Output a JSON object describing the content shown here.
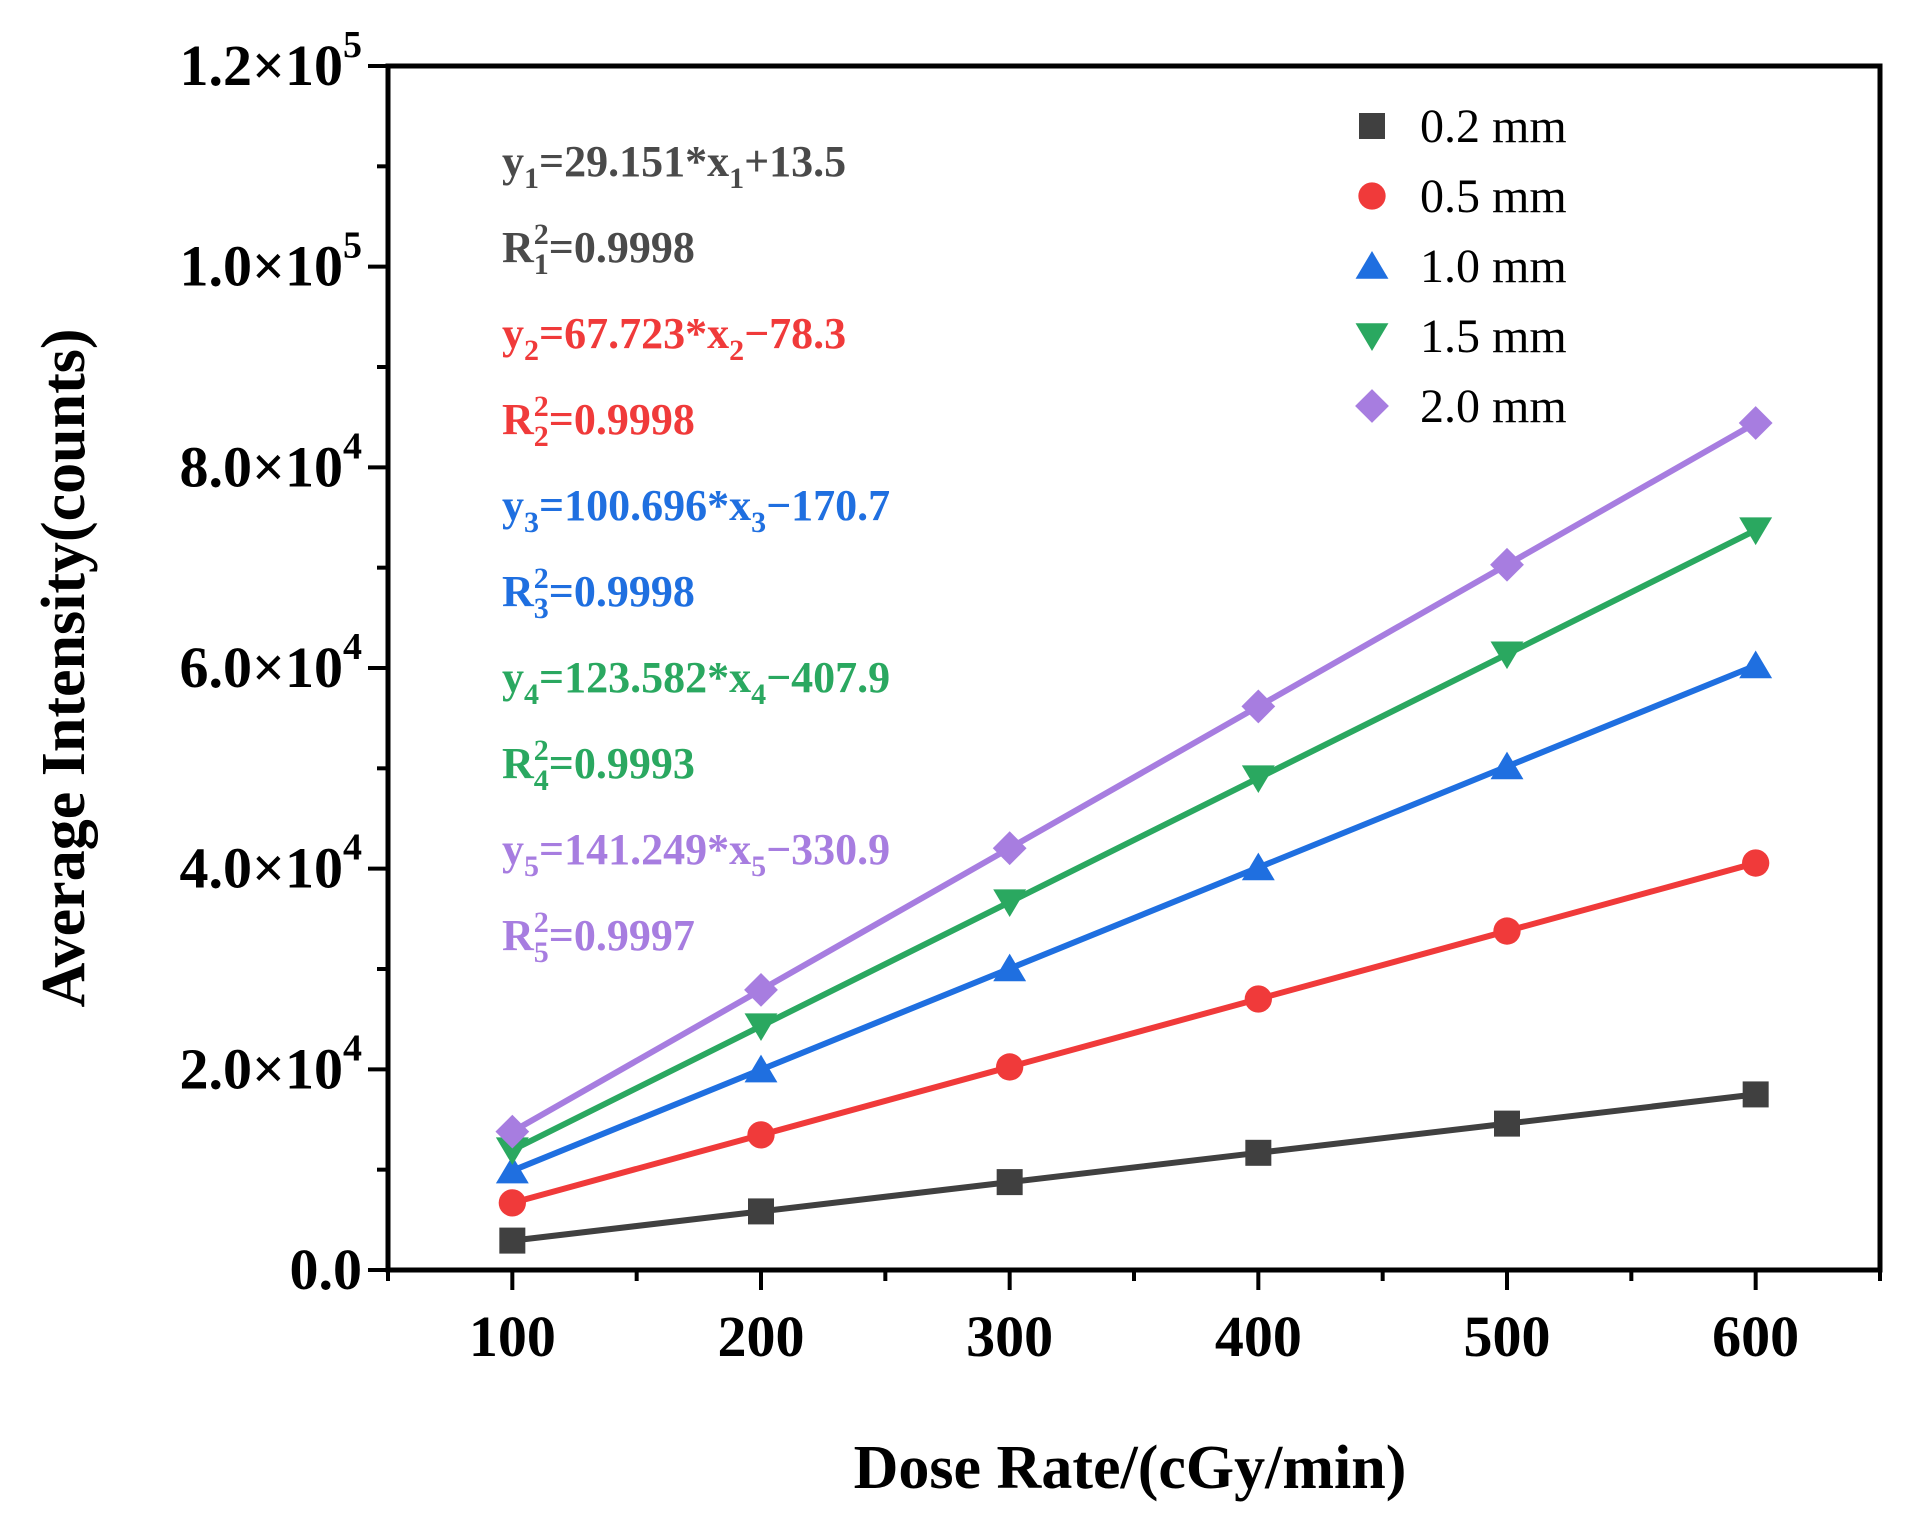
{
  "chart_data": {
    "type": "line",
    "title": "",
    "xlabel": "Dose Rate/(cGy/min)",
    "ylabel": "Average Intensity(counts)",
    "xlim": [
      50,
      650
    ],
    "ylim": [
      0,
      120000
    ],
    "x": [
      100,
      200,
      300,
      400,
      500,
      600
    ],
    "x_ticks": [
      "100",
      "200",
      "300",
      "400",
      "500",
      "600"
    ],
    "y_ticks": [
      {
        "mantissa": "0.0",
        "exp": ""
      },
      {
        "mantissa": "2.0×10",
        "exp": "4"
      },
      {
        "mantissa": "4.0×10",
        "exp": "4"
      },
      {
        "mantissa": "6.0×10",
        "exp": "4"
      },
      {
        "mantissa": "8.0×10",
        "exp": "4"
      },
      {
        "mantissa": "1.0×10",
        "exp": "5"
      },
      {
        "mantissa": "1.2×10",
        "exp": "5"
      }
    ],
    "grid": false,
    "legend_position": "top-right",
    "series": [
      {
        "name": "0.2 mm",
        "color": "#404040",
        "marker": "square",
        "values": [
          2930,
          5840,
          8760,
          11680,
          14590,
          17500
        ]
      },
      {
        "name": "0.5 mm",
        "color": "#f03a3a",
        "marker": "circle",
        "values": [
          6690,
          13470,
          20240,
          27010,
          33780,
          40560
        ]
      },
      {
        "name": "1.0 mm",
        "color": "#1f6fe0",
        "marker": "triangle-up",
        "values": [
          9900,
          19970,
          30040,
          40110,
          50180,
          60250
        ]
      },
      {
        "name": "1.5 mm",
        "color": "#2aa860",
        "marker": "triangle-down",
        "values": [
          11950,
          24310,
          36670,
          49030,
          61380,
          73740
        ]
      },
      {
        "name": "2.0 mm",
        "color": "#a77de0",
        "marker": "diamond",
        "values": [
          13790,
          27920,
          42040,
          56170,
          70290,
          84420
        ]
      }
    ],
    "annotations": [
      {
        "color": "#4a4a4a",
        "equation": {
          "parts": [
            [
              "t",
              "y"
            ],
            [
              "sub",
              "1"
            ],
            [
              "t",
              "=29.151*x"
            ],
            [
              "sub",
              "1"
            ],
            [
              "t",
              "+13.5"
            ]
          ]
        },
        "r2": {
          "parts": [
            [
              "t",
              "R"
            ],
            [
              "supsub",
              "2",
              "1"
            ],
            [
              "t",
              "=0.9998"
            ]
          ]
        }
      },
      {
        "color": "#f03a3a",
        "equation": {
          "parts": [
            [
              "t",
              "y"
            ],
            [
              "sub",
              "2"
            ],
            [
              "t",
              "=67.723*x"
            ],
            [
              "sub",
              "2"
            ],
            [
              "t",
              "−78.3"
            ]
          ]
        },
        "r2": {
          "parts": [
            [
              "t",
              "R"
            ],
            [
              "supsub",
              "2",
              "2"
            ],
            [
              "t",
              "=0.9998"
            ]
          ]
        }
      },
      {
        "color": "#1f6fe0",
        "equation": {
          "parts": [
            [
              "t",
              "y"
            ],
            [
              "sub",
              "3"
            ],
            [
              "t",
              "=100.696*x"
            ],
            [
              "sub",
              "3"
            ],
            [
              "t",
              "−170.7"
            ]
          ]
        },
        "r2": {
          "parts": [
            [
              "t",
              "R"
            ],
            [
              "supsub",
              "2",
              "3"
            ],
            [
              "t",
              "=0.9998"
            ]
          ]
        }
      },
      {
        "color": "#2aa860",
        "equation": {
          "parts": [
            [
              "t",
              "y"
            ],
            [
              "sub",
              "4"
            ],
            [
              "t",
              "=123.582*x"
            ],
            [
              "sub",
              "4"
            ],
            [
              "t",
              "−407.9"
            ]
          ]
        },
        "r2": {
          "parts": [
            [
              "t",
              "R"
            ],
            [
              "supsub",
              "2",
              "4"
            ],
            [
              "t",
              "=0.9993"
            ]
          ]
        }
      },
      {
        "color": "#a77de0",
        "equation": {
          "parts": [
            [
              "t",
              "y"
            ],
            [
              "sub",
              "5"
            ],
            [
              "t",
              "=141.249*x"
            ],
            [
              "sub",
              "5"
            ],
            [
              "t",
              "−330.9"
            ]
          ]
        },
        "r2": {
          "parts": [
            [
              "t",
              "R"
            ],
            [
              "supsub",
              "2",
              "5"
            ],
            [
              "t",
              "=0.9997"
            ]
          ]
        }
      }
    ]
  }
}
